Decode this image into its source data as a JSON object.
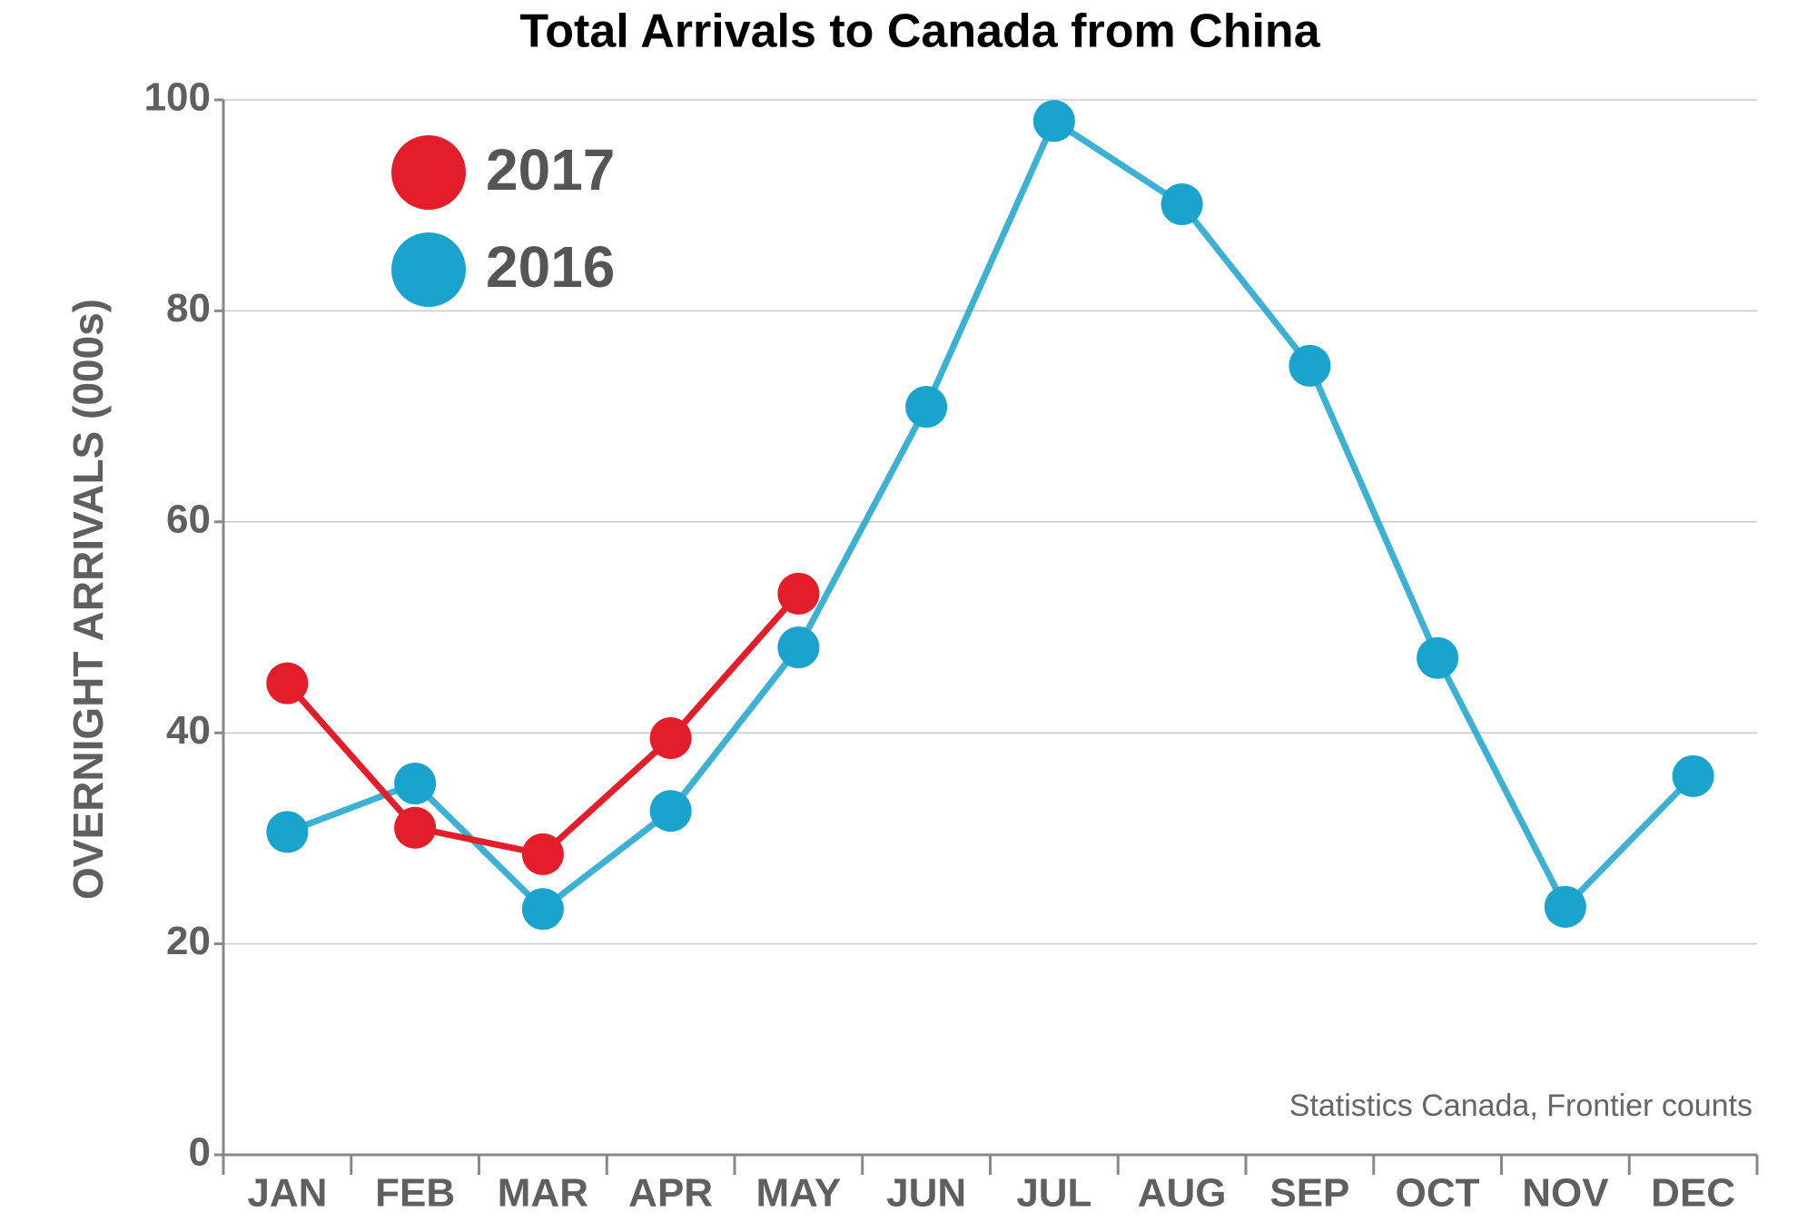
{
  "chart_data": {
    "type": "line",
    "title": "Total Arrivals to Canada from China",
    "y_label": "OVERNIGHT ARRIVALS (000s)",
    "annotation": "Statistics Canada, Frontier counts",
    "categories": [
      "JAN",
      "FEB",
      "MAR",
      "APR",
      "MAY",
      "JUN",
      "JUL",
      "AUG",
      "SEP",
      "OCT",
      "NOV",
      "DEC"
    ],
    "series": [
      {
        "name": "2017",
        "color": "#e31e2a",
        "values": [
          44.7,
          31.0,
          28.5,
          39.5,
          53.2,
          null,
          null,
          null,
          null,
          null,
          null,
          null
        ]
      },
      {
        "name": "2016",
        "color": "#1aa3cc",
        "values": [
          30.6,
          35.2,
          23.3,
          32.6,
          48.1,
          70.9,
          98.0,
          90.1,
          74.8,
          47.1,
          23.5,
          35.9
        ]
      }
    ],
    "ylim": [
      0,
      100
    ],
    "yticks": [
      0,
      20,
      40,
      60,
      80,
      100
    ],
    "grid": true,
    "legend": "top-left"
  }
}
